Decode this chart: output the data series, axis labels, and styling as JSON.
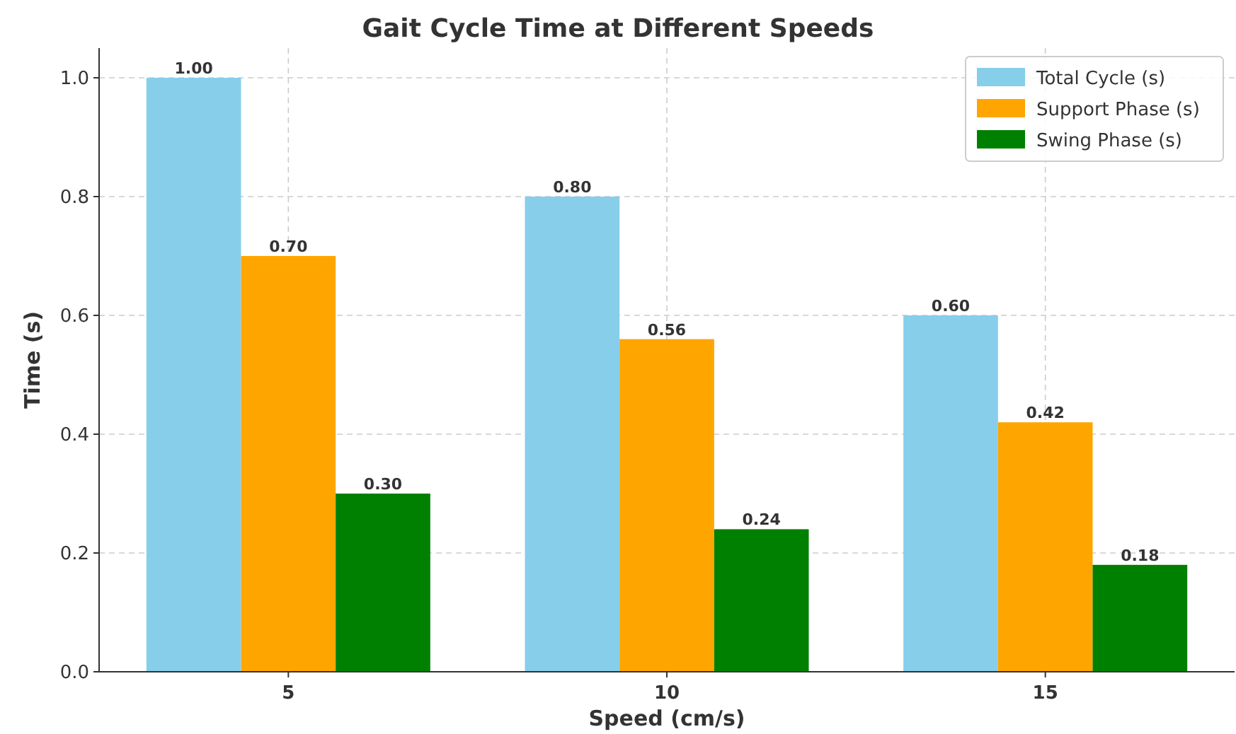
{
  "chart_data": {
    "type": "bar",
    "title": "Gait Cycle Time at Different Speeds",
    "xlabel": "Speed (cm/s)",
    "ylabel": "Time (s)",
    "categories": [
      "5",
      "10",
      "15"
    ],
    "series": [
      {
        "name": "Total Cycle (s)",
        "color": "#87ceeb",
        "values": [
          1.0,
          0.8,
          0.6
        ],
        "value_labels": [
          "1.00",
          "0.80",
          "0.60"
        ]
      },
      {
        "name": "Support Phase (s)",
        "color": "#ffa500",
        "values": [
          0.7,
          0.56,
          0.42
        ],
        "value_labels": [
          "0.70",
          "0.56",
          "0.42"
        ]
      },
      {
        "name": "Swing Phase (s)",
        "color": "#008000",
        "values": [
          0.3,
          0.24,
          0.18
        ],
        "value_labels": [
          "0.30",
          "0.24",
          "0.18"
        ]
      }
    ],
    "ylim": [
      0,
      1.05
    ],
    "yticks": [
      {
        "value": 0,
        "label": "0.0"
      },
      {
        "value": 0.2,
        "label": "0.2"
      },
      {
        "value": 0.4,
        "label": "0.4"
      },
      {
        "value": 0.6,
        "label": "0.6"
      },
      {
        "value": 0.8,
        "label": "0.8"
      },
      {
        "value": 1.0,
        "label": "1.0"
      }
    ],
    "grid": true,
    "legend": "top right"
  }
}
